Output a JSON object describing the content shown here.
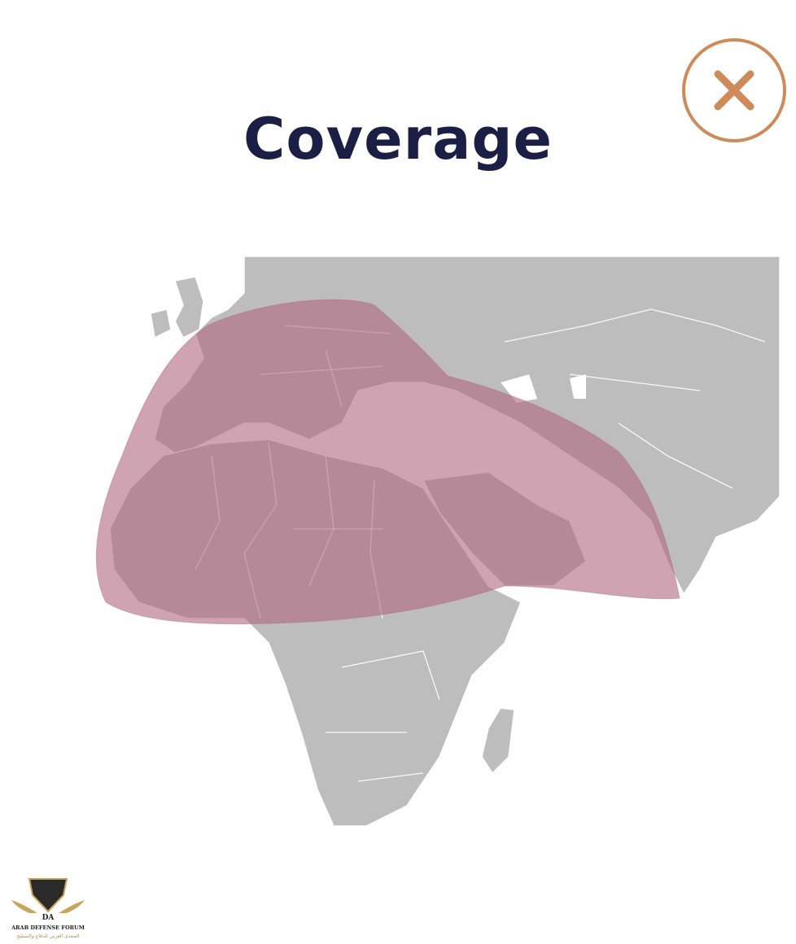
{
  "dialog": {
    "title": "Coverage",
    "close_icon": "close-x-icon"
  },
  "map": {
    "land_color": "#bdbdbd",
    "border_color": "#ffffff",
    "coverage_color": "#b0657e"
  },
  "watermark": {
    "line1": "ARAB DEFENSE FORUM",
    "line2": "المنتدى العربي للدفاع والتسليح",
    "mark": "DA"
  }
}
